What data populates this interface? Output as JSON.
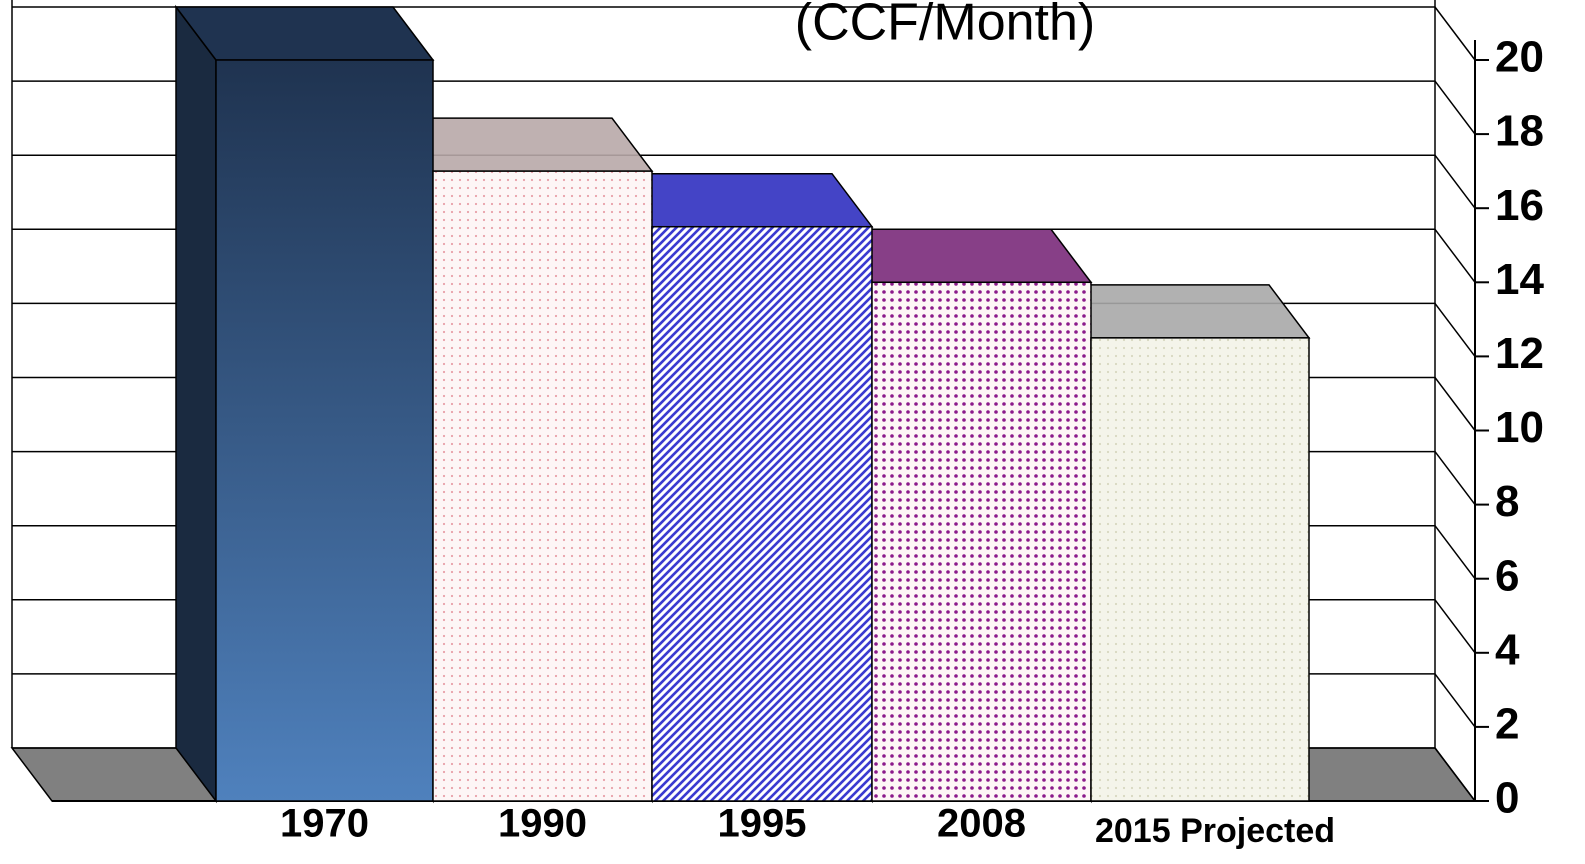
{
  "chart_data": {
    "type": "bar3d",
    "title": "(CCF/Month)",
    "categories": [
      "1970",
      "1990",
      "1995",
      "2008",
      "2015 Projected"
    ],
    "values": [
      20,
      17,
      15.5,
      14,
      12.5
    ],
    "colors": [
      "#4f81bd",
      "#e8a0a8",
      "#3a3ad0",
      "#8b1a8b",
      "#d8d8c0"
    ],
    "ylim": [
      0,
      20
    ],
    "yticks": [
      0,
      2,
      4,
      6,
      8,
      10,
      12,
      14,
      16,
      18,
      20
    ],
    "grid": true
  }
}
